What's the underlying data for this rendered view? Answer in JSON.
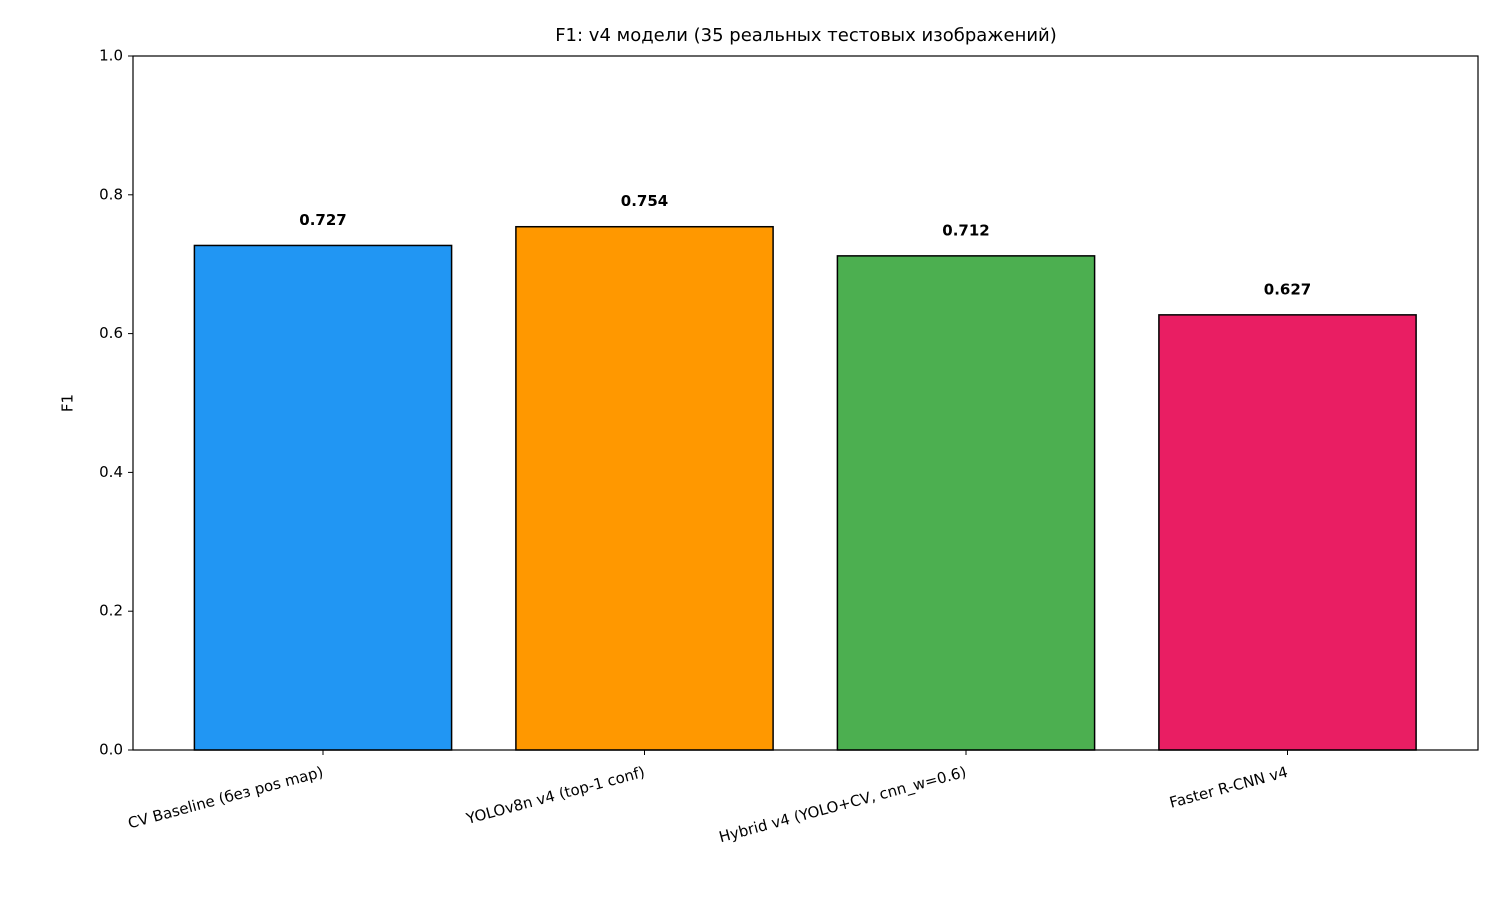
{
  "chart_data": {
    "type": "bar",
    "title": "F1: v4 модели (35 реальных тестовых изображений)",
    "y_label": "F1",
    "categories": [
      "CV Baseline (без pos map)",
      "YOLOv8n v4 (top-1 conf)",
      "Hybrid v4 (YOLO+CV, cnn_w=0.6)",
      "Faster R-CNN v4"
    ],
    "values": [
      0.727,
      0.754,
      0.712,
      0.627
    ],
    "colors": [
      "#2196f3",
      "#ff9800",
      "#4caf50",
      "#e91e63"
    ],
    "ylim": [
      0,
      1
    ],
    "yticks": [
      {
        "value": 0,
        "label": "0.0"
      },
      0.2,
      0.4,
      0.6,
      0.8,
      {
        "value": 1,
        "label": "1.0"
      }
    ],
    "grid": false
  }
}
